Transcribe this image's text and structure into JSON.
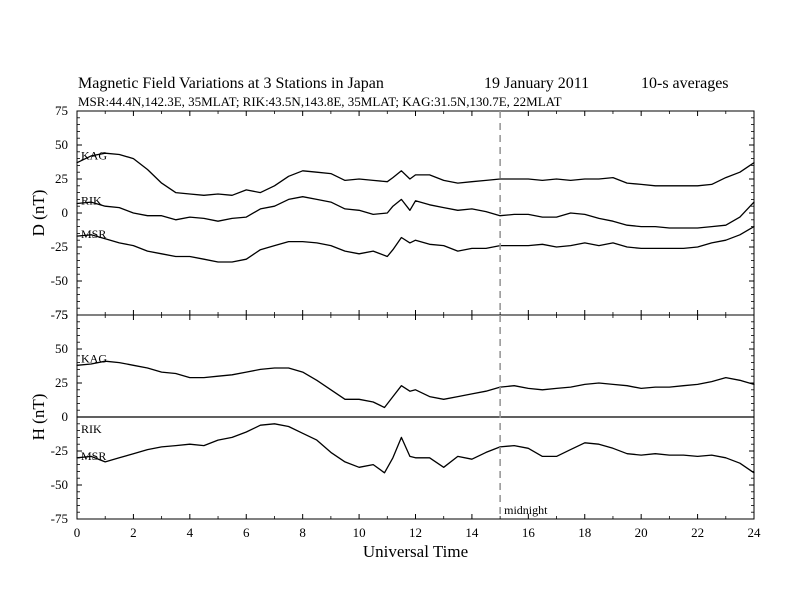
{
  "header": {
    "title": "Magnetic Field Variations at 3 Stations in Japan",
    "date": "19 January 2011",
    "averaging": "10-s averages",
    "stations": "MSR:44.4N,142.3E, 35MLAT;  RIK:43.5N,143.8E, 35MLAT;  KAG:31.5N,130.7E, 22MLAT"
  },
  "chart_data": [
    {
      "type": "line",
      "panel": "top",
      "ylabel": "D (nT)",
      "xlabel": "",
      "xlim": [
        0,
        24
      ],
      "ylim": [
        -75,
        75
      ],
      "xticks": [
        0,
        2,
        4,
        6,
        8,
        10,
        12,
        14,
        16,
        18,
        20,
        22,
        24
      ],
      "yticks": [
        -75,
        -50,
        -25,
        0,
        25,
        50,
        75
      ],
      "grid": false,
      "series": [
        {
          "name": "KAG",
          "x": [
            0,
            0.5,
            1,
            1.5,
            2,
            2.5,
            3,
            3.5,
            4,
            4.5,
            5,
            5.5,
            6,
            6.5,
            7,
            7.5,
            8,
            8.5,
            9,
            9.5,
            10,
            10.5,
            11,
            11.2,
            11.5,
            11.8,
            12,
            12.5,
            13,
            13.5,
            14,
            14.5,
            15,
            15.5,
            16,
            16.5,
            17,
            17.5,
            18,
            18.5,
            19,
            19.5,
            20,
            20.5,
            21,
            21.5,
            22,
            22.5,
            23,
            23.5,
            24
          ],
          "y": [
            37,
            42,
            44,
            43,
            40,
            32,
            22,
            15,
            14,
            13,
            14,
            13,
            17,
            15,
            20,
            27,
            31,
            30,
            29,
            24,
            25,
            24,
            23,
            26,
            31,
            25,
            28,
            28,
            24,
            22,
            23,
            24,
            25,
            25,
            25,
            24,
            25,
            24,
            25,
            25,
            26,
            22,
            21,
            20,
            20,
            20,
            20,
            21,
            26,
            30,
            37
          ]
        },
        {
          "name": "RIK",
          "x": [
            0,
            0.5,
            1,
            1.5,
            2,
            2.5,
            3,
            3.5,
            4,
            4.5,
            5,
            5.5,
            6,
            6.5,
            7,
            7.5,
            8,
            8.5,
            9,
            9.5,
            10,
            10.5,
            11,
            11.2,
            11.5,
            11.8,
            12,
            12.5,
            13,
            13.5,
            14,
            14.5,
            15,
            15.5,
            16,
            16.5,
            17,
            17.5,
            18,
            18.5,
            19,
            19.5,
            20,
            20.5,
            21,
            21.5,
            22,
            22.5,
            23,
            23.5,
            24
          ],
          "y": [
            7,
            8,
            5,
            4,
            0,
            -2,
            -2,
            -5,
            -3,
            -4,
            -6,
            -4,
            -3,
            3,
            5,
            10,
            12,
            10,
            8,
            3,
            2,
            -1,
            0,
            5,
            10,
            2,
            9,
            6,
            4,
            2,
            3,
            1,
            -2,
            -1,
            -1,
            -3,
            -3,
            0,
            -1,
            -4,
            -6,
            -9,
            -10,
            -10,
            -11,
            -11,
            -11,
            -10,
            -9,
            -3,
            8
          ]
        },
        {
          "name": "MSR",
          "x": [
            0,
            0.5,
            1,
            1.5,
            2,
            2.5,
            3,
            3.5,
            4,
            4.5,
            5,
            5.5,
            6,
            6.5,
            7,
            7.5,
            8,
            8.5,
            9,
            9.5,
            10,
            10.5,
            11,
            11.2,
            11.5,
            11.8,
            12,
            12.5,
            13,
            13.5,
            14,
            14.5,
            15,
            15.5,
            16,
            16.5,
            17,
            17.5,
            18,
            18.5,
            19,
            19.5,
            20,
            20.5,
            21,
            21.5,
            22,
            22.5,
            23,
            23.5,
            24
          ],
          "y": [
            -17,
            -16,
            -19,
            -22,
            -24,
            -28,
            -30,
            -32,
            -32,
            -34,
            -36,
            -36,
            -34,
            -27,
            -24,
            -21,
            -21,
            -22,
            -24,
            -28,
            -30,
            -28,
            -32,
            -27,
            -18,
            -22,
            -20,
            -23,
            -24,
            -28,
            -26,
            -26,
            -24,
            -24,
            -24,
            -23,
            -25,
            -24,
            -22,
            -24,
            -22,
            -25,
            -26,
            -26,
            -26,
            -26,
            -25,
            -22,
            -20,
            -16,
            -10
          ]
        }
      ]
    },
    {
      "type": "line",
      "panel": "bottom",
      "ylabel": "H (nT)",
      "xlabel": "Universal Time",
      "xlim": [
        0,
        24
      ],
      "ylim": [
        -75,
        75
      ],
      "xticks": [
        0,
        2,
        4,
        6,
        8,
        10,
        12,
        14,
        16,
        18,
        20,
        22,
        24
      ],
      "yticks": [
        -75,
        -50,
        -25,
        0,
        25,
        50,
        75
      ],
      "grid": false,
      "series": [
        {
          "name": "KAG",
          "x": [
            0,
            0.5,
            1,
            1.5,
            2,
            2.5,
            3,
            3.5,
            4,
            4.5,
            5,
            5.5,
            6,
            6.5,
            7,
            7.5,
            8,
            8.5,
            9,
            9.5,
            10,
            10.5,
            10.9,
            11.2,
            11.5,
            11.8,
            12,
            12.5,
            13,
            13.5,
            14,
            14.5,
            15,
            15.5,
            16,
            16.5,
            17,
            17.5,
            18,
            18.5,
            19,
            19.5,
            20,
            20.5,
            21,
            21.5,
            22,
            22.5,
            23,
            23.5,
            24
          ],
          "y": [
            38,
            39,
            41,
            40,
            38,
            36,
            33,
            32,
            29,
            29,
            30,
            31,
            33,
            35,
            36,
            36,
            33,
            27,
            20,
            13,
            13,
            11,
            7,
            15,
            23,
            19,
            20,
            15,
            13,
            15,
            17,
            19,
            22,
            23,
            21,
            20,
            21,
            22,
            24,
            25,
            24,
            23,
            21,
            22,
            22,
            23,
            24,
            26,
            29,
            27,
            24
          ]
        },
        {
          "name": "RIK",
          "x": [
            0,
            24
          ],
          "y": [
            0,
            0
          ]
        },
        {
          "name": "MSR",
          "x": [
            0,
            0.5,
            1,
            1.5,
            2,
            2.5,
            3,
            3.5,
            4,
            4.5,
            5,
            5.5,
            6,
            6.5,
            7,
            7.5,
            8,
            8.5,
            9,
            9.5,
            10,
            10.5,
            10.9,
            11.2,
            11.5,
            11.8,
            12,
            12.5,
            13,
            13.5,
            14,
            14.5,
            15,
            15.5,
            16,
            16.5,
            17,
            17.5,
            18,
            18.5,
            19,
            19.5,
            20,
            20.5,
            21,
            21.5,
            22,
            22.5,
            23,
            23.5,
            24
          ],
          "y": [
            -30,
            -29,
            -33,
            -30,
            -27,
            -24,
            -22,
            -21,
            -20,
            -21,
            -17,
            -15,
            -11,
            -6,
            -5,
            -7,
            -12,
            -17,
            -26,
            -33,
            -37,
            -35,
            -41,
            -30,
            -15,
            -29,
            -30,
            -30,
            -37,
            -29,
            -31,
            -26,
            -22,
            -21,
            -23,
            -29,
            -29,
            -24,
            -19,
            -20,
            -23,
            -27,
            -28,
            -27,
            -28,
            -28,
            -29,
            -28,
            -30,
            -34,
            -41
          ]
        }
      ]
    }
  ],
  "annotations": {
    "midnight_label": "midnight",
    "midnight_x": 15
  }
}
